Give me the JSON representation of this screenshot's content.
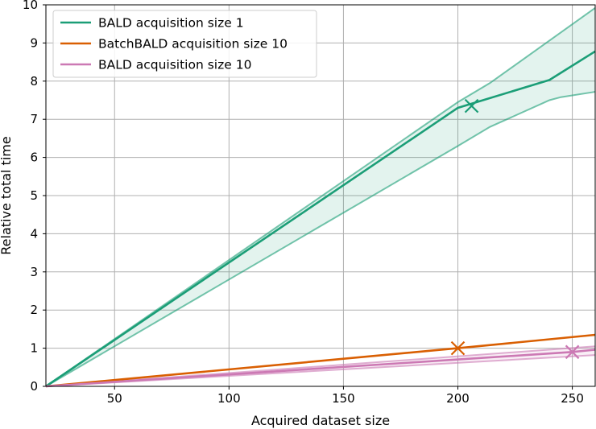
{
  "chart_data": {
    "type": "line",
    "xlabel": "Acquired dataset size",
    "ylabel": "Relative total time",
    "xlim": [
      20,
      260
    ],
    "ylim": [
      0,
      10
    ],
    "xticks": [
      50,
      100,
      150,
      200,
      250
    ],
    "yticks": [
      0,
      1,
      2,
      3,
      4,
      5,
      6,
      7,
      8,
      9,
      10
    ],
    "grid": true,
    "legend_position": "top-left",
    "series": [
      {
        "name": "BALD acquisition size 1",
        "color": "#1b9e77",
        "x": [
          20,
          200,
          240,
          260
        ],
        "y": [
          0.0,
          7.3,
          8.03,
          8.78
        ],
        "band_upper": {
          "x": [
            20,
            200,
            214,
            260
          ],
          "y": [
            0.0,
            7.45,
            7.95,
            9.92
          ]
        },
        "band_lower": {
          "x": [
            20,
            200,
            214,
            240,
            245,
            260
          ],
          "y": [
            0.0,
            6.3,
            6.8,
            7.5,
            7.58,
            7.72
          ]
        },
        "marker": {
          "x": 206,
          "y": 7.35,
          "symbol": "x"
        }
      },
      {
        "name": "BatchBALD acquisition size 10",
        "color": "#d95f02",
        "x": [
          20,
          200,
          260
        ],
        "y": [
          0.0,
          1.0,
          1.35
        ],
        "marker": {
          "x": 200,
          "y": 1.0,
          "symbol": "x"
        }
      },
      {
        "name": "BALD acquisition size 10",
        "color": "#cc79b4",
        "x": [
          20,
          250,
          260
        ],
        "y": [
          0.0,
          0.9,
          0.96
        ],
        "band_upper": {
          "x": [
            20,
            260
          ],
          "y": [
            0.0,
            1.05
          ]
        },
        "band_lower": {
          "x": [
            20,
            260
          ],
          "y": [
            0.0,
            0.82
          ]
        },
        "marker": {
          "x": 250,
          "y": 0.9,
          "symbol": "x"
        }
      }
    ]
  }
}
